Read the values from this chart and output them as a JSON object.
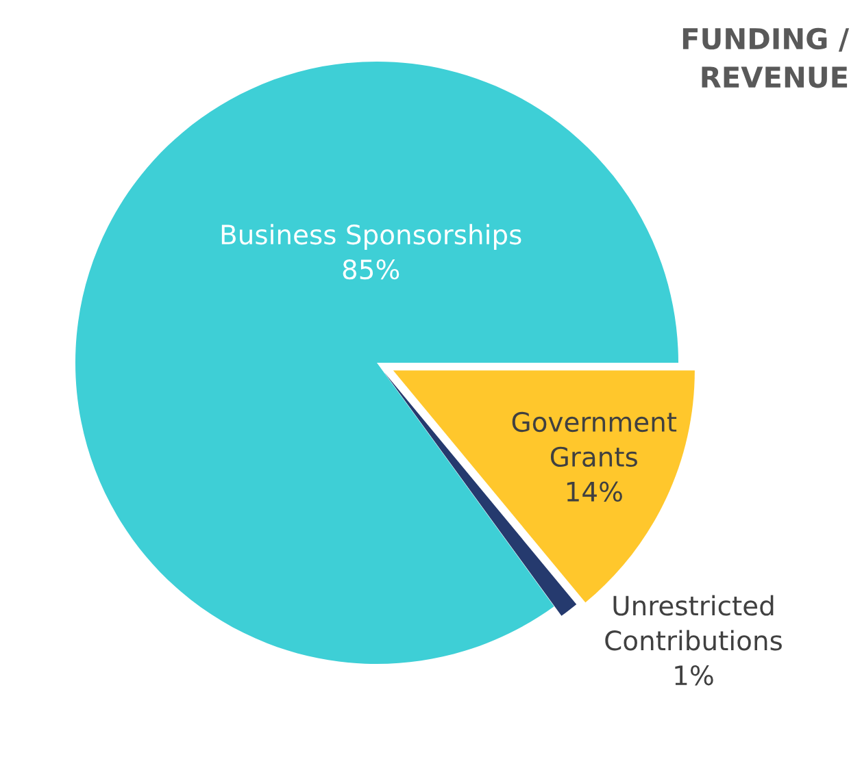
{
  "chart_data": {
    "type": "pie",
    "title": "FUNDING /\nREVENUE",
    "categories": [
      "Government\nGrants",
      "Unrestricted\nContributions",
      "Business Sponsorships"
    ],
    "values": [
      14,
      1,
      85
    ],
    "value_labels": [
      "14%",
      "1%",
      "85%"
    ],
    "colors": [
      "#ffc72c",
      "#253a6e",
      "#3ecfd6"
    ],
    "legend": false
  }
}
